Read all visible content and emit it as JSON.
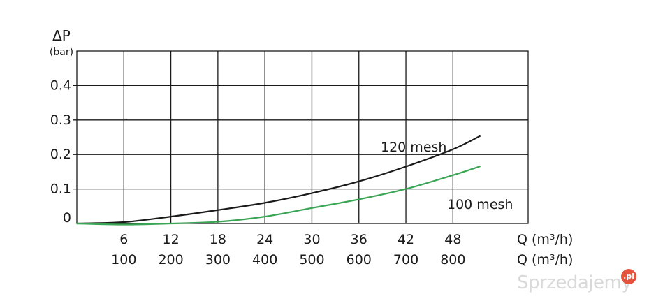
{
  "chart_data": {
    "type": "line",
    "ylabel": "ΔP",
    "ylabel_unit": "(bar)",
    "x_label_primary": "Q (m³/h)",
    "x_label_secondary": "Q (m³/h)",
    "x_ticks_primary": [
      "6",
      "12",
      "18",
      "24",
      "30",
      "36",
      "42",
      "48"
    ],
    "x_ticks_secondary": [
      "100",
      "200",
      "300",
      "400",
      "500",
      "600",
      "700",
      "800"
    ],
    "y_ticks": [
      "0",
      "0.1",
      "0.2",
      "0.3",
      "0.4"
    ],
    "x_range": [
      0,
      57.6
    ],
    "ylim": [
      0,
      0.5
    ],
    "grid": true,
    "series": [
      {
        "name": "120 mesh",
        "color": "#1a1a1a",
        "x": [
          0,
          6,
          12,
          18,
          24,
          30,
          36,
          42,
          48,
          51.5
        ],
        "values": [
          0,
          0.004,
          0.02,
          0.039,
          0.06,
          0.088,
          0.122,
          0.165,
          0.215,
          0.254
        ]
      },
      {
        "name": "100 mesh",
        "color": "#3aa655",
        "x": [
          0,
          6,
          12,
          18,
          24,
          30,
          36,
          42,
          48,
          51.5
        ],
        "values": [
          0,
          -0.003,
          0.0,
          0.005,
          0.02,
          0.045,
          0.07,
          0.1,
          0.14,
          0.166
        ]
      }
    ]
  },
  "watermark": {
    "text": "Sprzedajemy",
    "badge": ".pl"
  }
}
